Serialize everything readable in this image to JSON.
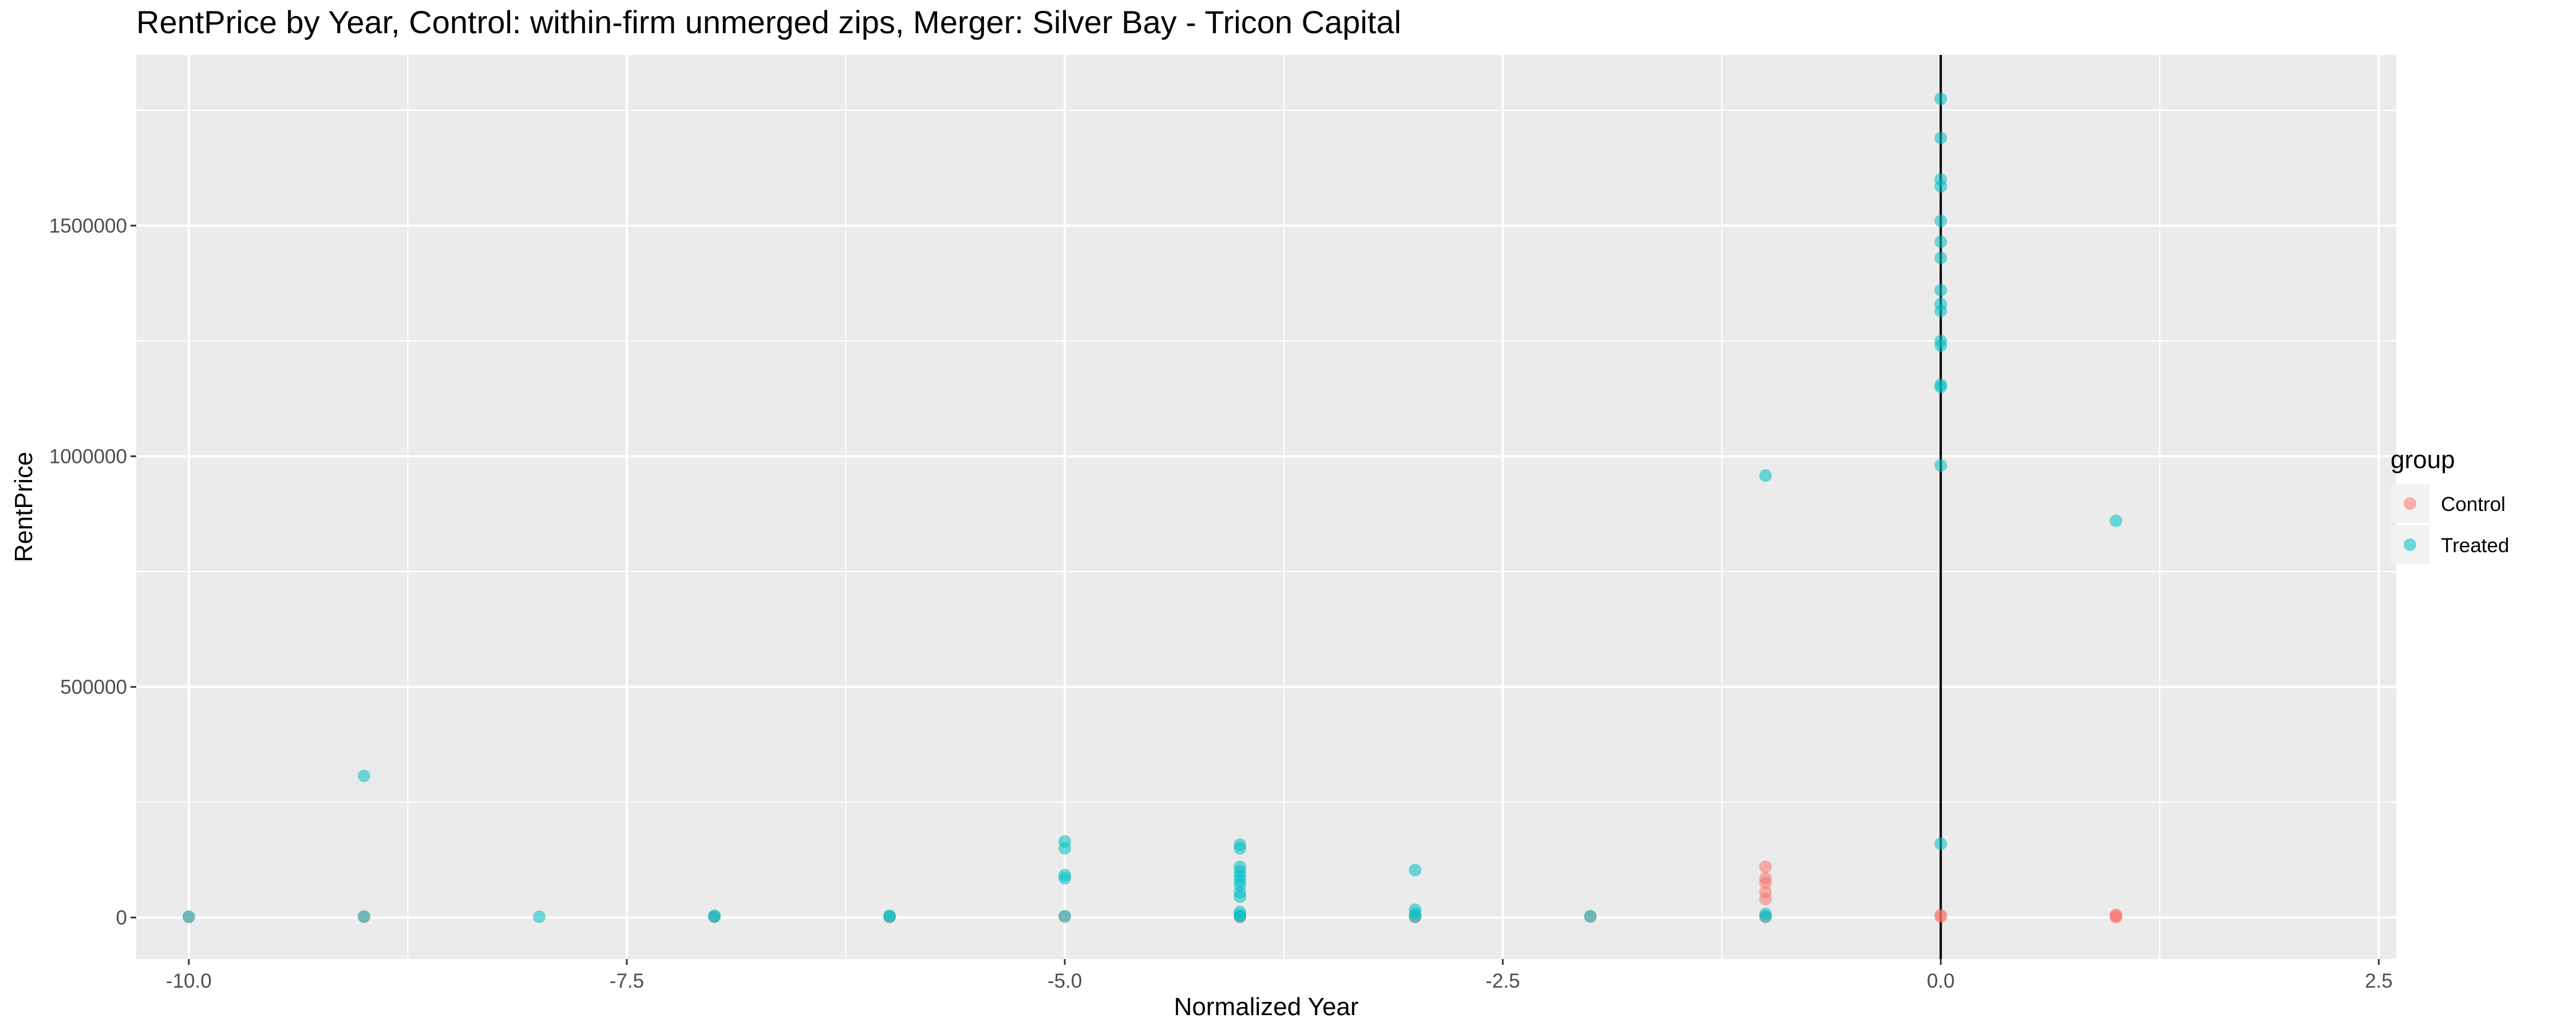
{
  "chart_data": {
    "type": "scatter",
    "title": "RentPrice by Year, Control: within-firm unmerged zips, Merger: Silver Bay - Tricon Capital",
    "xlabel": "Normalized Year",
    "ylabel": "RentPrice",
    "xlim": [
      -10.3,
      2.6
    ],
    "ylim": [
      -90000,
      1870000
    ],
    "x_ticks": [
      -10.0,
      -7.5,
      -5.0,
      -2.5,
      0.0,
      2.5
    ],
    "x_tick_labels": [
      "-10.0",
      "-7.5",
      "-5.0",
      "-2.5",
      "0.0",
      "2.5"
    ],
    "y_ticks": [
      0,
      500000,
      1000000,
      1500000
    ],
    "y_tick_labels": [
      "0",
      "500000",
      "1000000",
      "1500000"
    ],
    "grid": true,
    "vline_x": 0,
    "legend": {
      "title": "group",
      "position": "right",
      "entries": [
        "Control",
        "Treated"
      ]
    },
    "series": [
      {
        "name": "Control",
        "color": "#F8766D",
        "points": [
          {
            "x": -10,
            "y": 1000
          },
          {
            "x": -9,
            "y": 2000
          },
          {
            "x": -7,
            "y": 1500
          },
          {
            "x": -6,
            "y": 1000
          },
          {
            "x": -5,
            "y": 2000
          },
          {
            "x": -4,
            "y": 1500
          },
          {
            "x": -3,
            "y": 1000
          },
          {
            "x": -2,
            "y": 2000
          },
          {
            "x": -1,
            "y": 110000
          },
          {
            "x": -1,
            "y": 85000
          },
          {
            "x": -1,
            "y": 75000
          },
          {
            "x": -1,
            "y": 55000
          },
          {
            "x": -1,
            "y": 40000
          },
          {
            "x": -1,
            "y": 1500
          },
          {
            "x": 0,
            "y": 5000
          },
          {
            "x": 0,
            "y": 2000
          },
          {
            "x": 1,
            "y": 6000
          },
          {
            "x": 1,
            "y": 3000
          },
          {
            "x": 1,
            "y": 1000
          }
        ]
      },
      {
        "name": "Treated",
        "color": "#00BFC4",
        "points": [
          {
            "x": -10,
            "y": 2000
          },
          {
            "x": -9,
            "y": 307000
          },
          {
            "x": -9,
            "y": 2000
          },
          {
            "x": -8,
            "y": 1500
          },
          {
            "x": -7,
            "y": 2000
          },
          {
            "x": -7,
            "y": 4000
          },
          {
            "x": -6,
            "y": 2000
          },
          {
            "x": -6,
            "y": 4000
          },
          {
            "x": -5,
            "y": 165000
          },
          {
            "x": -5,
            "y": 150000
          },
          {
            "x": -5,
            "y": 92000
          },
          {
            "x": -5,
            "y": 85000
          },
          {
            "x": -5,
            "y": 3000
          },
          {
            "x": -4,
            "y": 158000
          },
          {
            "x": -4,
            "y": 150000
          },
          {
            "x": -4,
            "y": 110000
          },
          {
            "x": -4,
            "y": 100000
          },
          {
            "x": -4,
            "y": 90000
          },
          {
            "x": -4,
            "y": 80000
          },
          {
            "x": -4,
            "y": 70000
          },
          {
            "x": -4,
            "y": 55000
          },
          {
            "x": -4,
            "y": 45000
          },
          {
            "x": -4,
            "y": 12000
          },
          {
            "x": -4,
            "y": 5000
          },
          {
            "x": -4,
            "y": 2000
          },
          {
            "x": -3,
            "y": 103000
          },
          {
            "x": -3,
            "y": 17000
          },
          {
            "x": -3,
            "y": 8000
          },
          {
            "x": -3,
            "y": 2000
          },
          {
            "x": -2,
            "y": 3000
          },
          {
            "x": -1,
            "y": 958000
          },
          {
            "x": -1,
            "y": 8000
          },
          {
            "x": -1,
            "y": 2000
          },
          {
            "x": 0,
            "y": 1775000
          },
          {
            "x": 0,
            "y": 1690000
          },
          {
            "x": 0,
            "y": 1600000
          },
          {
            "x": 0,
            "y": 1585000
          },
          {
            "x": 0,
            "y": 1510000
          },
          {
            "x": 0,
            "y": 1465000
          },
          {
            "x": 0,
            "y": 1430000
          },
          {
            "x": 0,
            "y": 1360000
          },
          {
            "x": 0,
            "y": 1330000
          },
          {
            "x": 0,
            "y": 1315000
          },
          {
            "x": 0,
            "y": 1250000
          },
          {
            "x": 0,
            "y": 1240000
          },
          {
            "x": 0,
            "y": 1155000
          },
          {
            "x": 0,
            "y": 1150000
          },
          {
            "x": 0,
            "y": 980000
          },
          {
            "x": 0,
            "y": 160000
          },
          {
            "x": 1,
            "y": 860000
          }
        ]
      }
    ]
  }
}
